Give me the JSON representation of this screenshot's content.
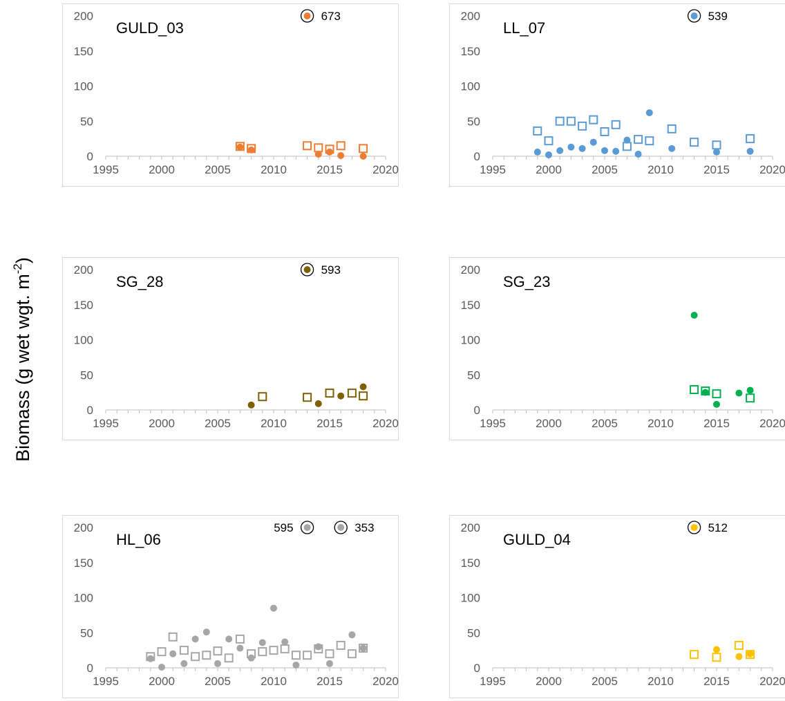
{
  "figure": {
    "ylabel_main": "Biomass  (g wet wgt. m",
    "ylabel_sup": "-2",
    "ylabel_close": ")"
  },
  "chart_data": [
    {
      "type": "scatter",
      "site": "GULD_03",
      "color": "#ED7D31",
      "xlim": [
        1995,
        2020
      ],
      "ylim": [
        0,
        200
      ],
      "xticks": [
        1995,
        2000,
        2005,
        2010,
        2015,
        2020
      ],
      "yticks": [
        0,
        50,
        100,
        150,
        200
      ],
      "squares": [
        [
          2007,
          14
        ],
        [
          2008,
          11
        ],
        [
          2013,
          15
        ],
        [
          2014,
          12
        ],
        [
          2015,
          10
        ],
        [
          2016,
          15
        ],
        [
          2018,
          11
        ]
      ],
      "dots": [
        [
          2007,
          13
        ],
        [
          2008,
          9
        ],
        [
          2014,
          3
        ],
        [
          2015,
          6
        ],
        [
          2016,
          1
        ],
        [
          2018,
          0
        ]
      ],
      "outliers": [
        {
          "x": 2013,
          "value": "673",
          "label_side": "right"
        }
      ]
    },
    {
      "type": "scatter",
      "site": "LL_07",
      "color": "#5B9BD5",
      "xlim": [
        1995,
        2020
      ],
      "ylim": [
        0,
        200
      ],
      "xticks": [
        1995,
        2000,
        2005,
        2010,
        2015,
        2020
      ],
      "yticks": [
        0,
        50,
        100,
        150,
        200
      ],
      "squares": [
        [
          1999,
          36
        ],
        [
          2000,
          22
        ],
        [
          2001,
          50
        ],
        [
          2002,
          50
        ],
        [
          2003,
          43
        ],
        [
          2004,
          52
        ],
        [
          2005,
          35
        ],
        [
          2006,
          45
        ],
        [
          2007,
          14
        ],
        [
          2008,
          24
        ],
        [
          2009,
          22
        ],
        [
          2011,
          39
        ],
        [
          2013,
          20
        ],
        [
          2015,
          16
        ],
        [
          2018,
          25
        ]
      ],
      "dots": [
        [
          1999,
          6
        ],
        [
          2000,
          2
        ],
        [
          2001,
          8
        ],
        [
          2002,
          13
        ],
        [
          2003,
          11
        ],
        [
          2004,
          20
        ],
        [
          2005,
          8
        ],
        [
          2006,
          7
        ],
        [
          2007,
          23
        ],
        [
          2008,
          3
        ],
        [
          2009,
          62
        ],
        [
          2011,
          11
        ],
        [
          2015,
          6
        ],
        [
          2018,
          7
        ]
      ],
      "outliers": [
        {
          "x": 2013,
          "value": "539",
          "label_side": "right"
        }
      ]
    },
    {
      "type": "scatter",
      "site": "SG_28",
      "color": "#7F6000",
      "xlim": [
        1995,
        2020
      ],
      "ylim": [
        0,
        200
      ],
      "xticks": [
        1995,
        2000,
        2005,
        2010,
        2015,
        2020
      ],
      "yticks": [
        0,
        50,
        100,
        150,
        200
      ],
      "squares": [
        [
          2009,
          19
        ],
        [
          2013,
          18
        ],
        [
          2015,
          24
        ],
        [
          2017,
          24
        ],
        [
          2018,
          20
        ]
      ],
      "dots": [
        [
          2008,
          7
        ],
        [
          2014,
          9
        ],
        [
          2016,
          20
        ],
        [
          2018,
          33
        ]
      ],
      "outliers": [
        {
          "x": 2013,
          "value": "593",
          "label_side": "right"
        }
      ]
    },
    {
      "type": "scatter",
      "site": "SG_23",
      "color": "#00B050",
      "xlim": [
        1995,
        2020
      ],
      "ylim": [
        0,
        200
      ],
      "xticks": [
        1995,
        2000,
        2005,
        2010,
        2015,
        2020
      ],
      "yticks": [
        0,
        50,
        100,
        150,
        200
      ],
      "squares": [
        [
          2013,
          29
        ],
        [
          2014,
          27
        ],
        [
          2015,
          23
        ],
        [
          2018,
          17
        ]
      ],
      "dots": [
        [
          2013,
          135
        ],
        [
          2014,
          25
        ],
        [
          2015,
          8
        ],
        [
          2017,
          24
        ],
        [
          2018,
          28
        ]
      ],
      "outliers": []
    },
    {
      "type": "scatter",
      "site": "HL_06",
      "color": "#A6A6A6",
      "xlim": [
        1995,
        2020
      ],
      "ylim": [
        0,
        200
      ],
      "xticks": [
        1995,
        2000,
        2005,
        2010,
        2015,
        2020
      ],
      "yticks": [
        0,
        50,
        100,
        150,
        200
      ],
      "squares": [
        [
          1999,
          16
        ],
        [
          2000,
          23
        ],
        [
          2001,
          44
        ],
        [
          2002,
          25
        ],
        [
          2003,
          16
        ],
        [
          2004,
          18
        ],
        [
          2005,
          24
        ],
        [
          2006,
          14
        ],
        [
          2007,
          41
        ],
        [
          2008,
          20
        ],
        [
          2009,
          23
        ],
        [
          2010,
          25
        ],
        [
          2011,
          27
        ],
        [
          2012,
          18
        ],
        [
          2013,
          18
        ],
        [
          2014,
          27
        ],
        [
          2015,
          20
        ],
        [
          2016,
          32
        ],
        [
          2017,
          20
        ],
        [
          2018,
          28
        ]
      ],
      "dots": [
        [
          1999,
          13
        ],
        [
          2000,
          1
        ],
        [
          2001,
          20
        ],
        [
          2002,
          6
        ],
        [
          2003,
          41
        ],
        [
          2004,
          51
        ],
        [
          2005,
          6
        ],
        [
          2006,
          41
        ],
        [
          2007,
          28
        ],
        [
          2008,
          14
        ],
        [
          2009,
          36
        ],
        [
          2010,
          85
        ],
        [
          2011,
          37
        ],
        [
          2012,
          4
        ],
        [
          2014,
          30
        ],
        [
          2015,
          6
        ],
        [
          2017,
          47
        ],
        [
          2018,
          28
        ]
      ],
      "outliers": [
        {
          "x": 2013,
          "value": "595",
          "label_side": "left"
        },
        {
          "x": 2016,
          "value": "353",
          "label_side": "right"
        }
      ]
    },
    {
      "type": "scatter",
      "site": "GULD_04",
      "color": "#FFC000",
      "xlim": [
        1995,
        2020
      ],
      "ylim": [
        0,
        200
      ],
      "xticks": [
        1995,
        2000,
        2005,
        2010,
        2015,
        2020
      ],
      "yticks": [
        0,
        50,
        100,
        150,
        200
      ],
      "squares": [
        [
          2013,
          19
        ],
        [
          2015,
          15
        ],
        [
          2017,
          32
        ],
        [
          2018,
          19
        ]
      ],
      "dots": [
        [
          2015,
          26
        ],
        [
          2017,
          16
        ],
        [
          2018,
          20
        ]
      ],
      "outliers": [
        {
          "x": 2013,
          "value": "512",
          "label_side": "right"
        }
      ]
    }
  ]
}
